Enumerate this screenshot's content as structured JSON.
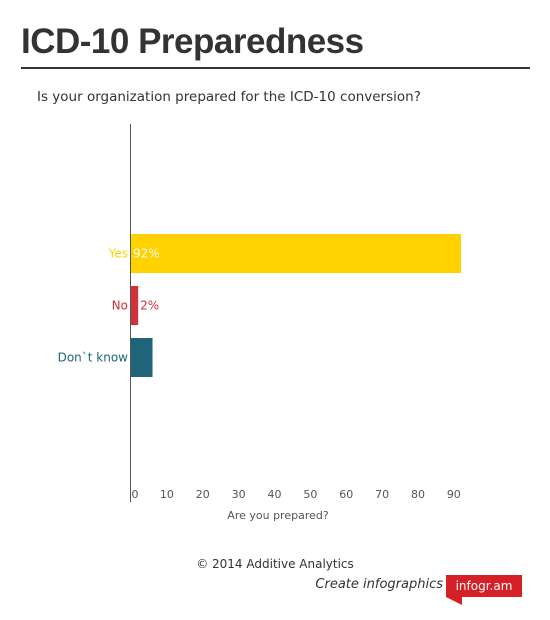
{
  "header": {
    "title": "ICD-10 Preparedness",
    "question": "Is your organization prepared for the ICD-10 conversion?"
  },
  "chart_data": {
    "type": "bar",
    "orientation": "horizontal",
    "categories": [
      "Yes",
      "No",
      "Don`t know"
    ],
    "values": [
      92,
      2,
      6
    ],
    "value_labels": [
      "92%",
      "2%",
      "6%"
    ],
    "colors": [
      "#ffd100",
      "#d03337",
      "#1f6478"
    ],
    "xlabel": "Are you prepared?",
    "xlim": [
      0,
      92
    ],
    "xticks": [
      "0",
      "10",
      "20",
      "30",
      "40",
      "50",
      "60",
      "70",
      "80",
      "90"
    ],
    "grid": false
  },
  "footer": {
    "copyright": "© 2014 Additive Analytics",
    "cta": "Create infographics",
    "brand": "infogr.am"
  }
}
